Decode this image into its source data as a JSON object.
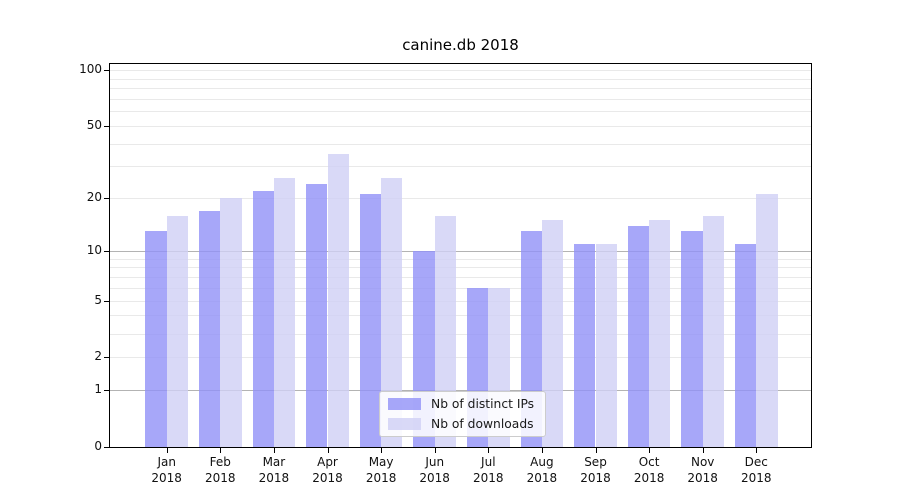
{
  "chart_data": {
    "type": "bar",
    "title": "canine.db 2018",
    "categories": [
      "Jan",
      "Feb",
      "Mar",
      "Apr",
      "May",
      "Jun",
      "Jul",
      "Aug",
      "Sep",
      "Oct",
      "Nov",
      "Dec"
    ],
    "year": "2018",
    "series": [
      {
        "name": "Nb of distinct IPs",
        "color": "#9191f7",
        "values": [
          13,
          17,
          22,
          24,
          21,
          10,
          6,
          13,
          11,
          14,
          13,
          11
        ]
      },
      {
        "name": "Nb of downloads",
        "color": "#d0d0f5",
        "values": [
          16,
          20,
          26,
          35,
          26,
          16,
          6,
          15,
          11,
          15,
          16,
          21
        ]
      }
    ],
    "y_axis": {
      "scale": "log1p",
      "tick_values": [
        0,
        1,
        2,
        5,
        10,
        20,
        50,
        100
      ],
      "tick_labels": [
        "0",
        "1",
        "2",
        "5",
        "10",
        "20",
        "50",
        "100"
      ],
      "ylim": [
        0,
        110
      ]
    },
    "grid": {
      "major_values": [
        1,
        10
      ],
      "minor_values": [
        2,
        3,
        4,
        5,
        6,
        7,
        8,
        9,
        20,
        30,
        40,
        50,
        60,
        70,
        80,
        90,
        100
      ],
      "major_color": "#b3b3b3",
      "minor_color": "#e9e9e9"
    },
    "legend": {
      "position": "lower-center"
    }
  }
}
